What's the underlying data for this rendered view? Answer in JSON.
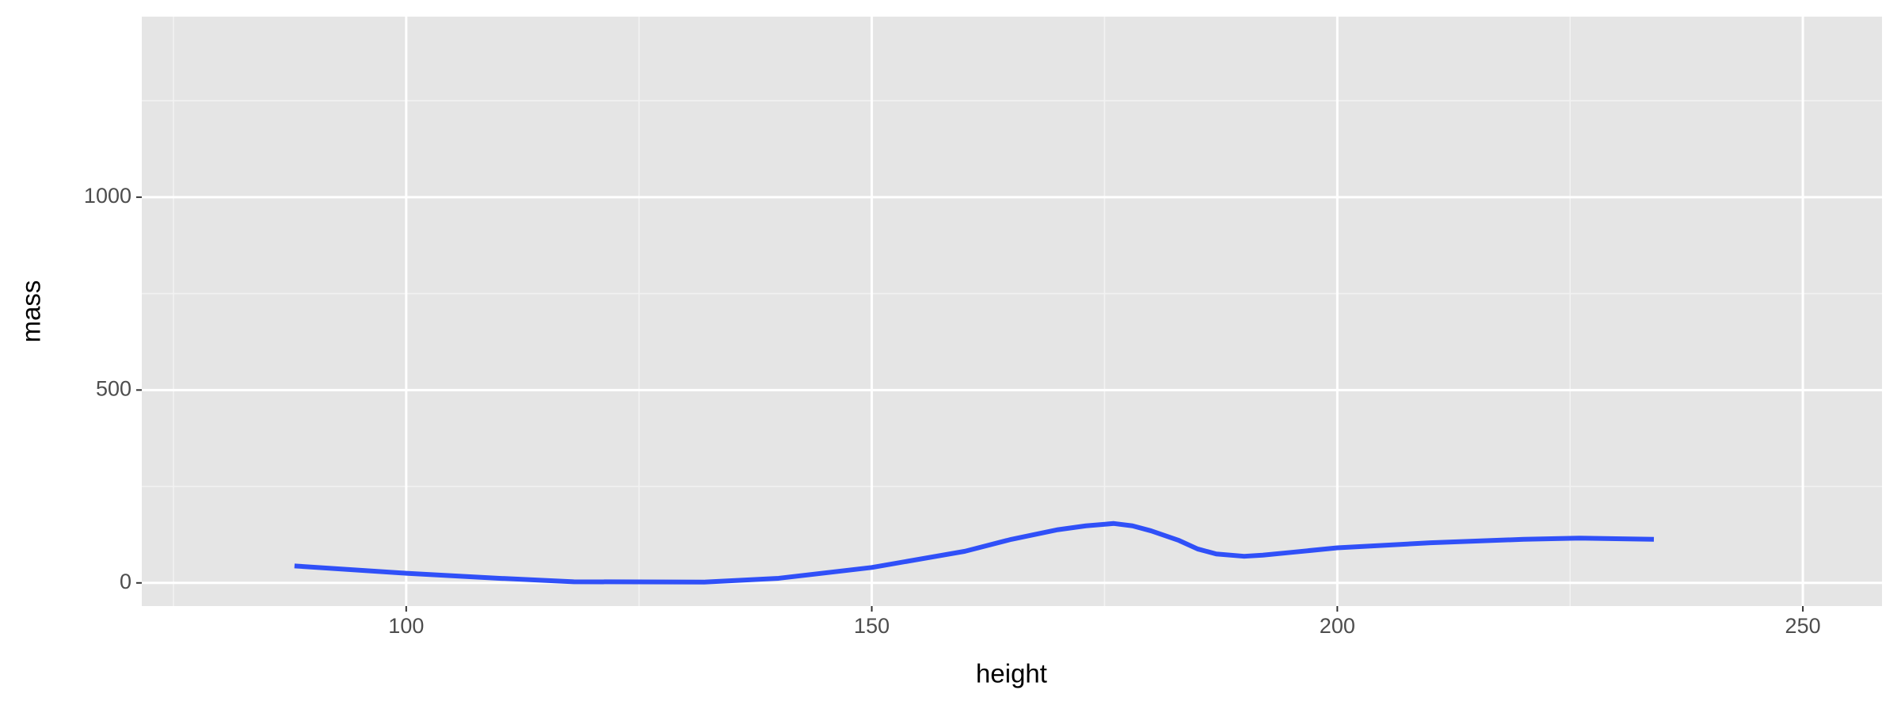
{
  "chart_data": {
    "type": "line",
    "x_label": "height",
    "y_label": "mass",
    "series": [
      {
        "color": "#3050f8",
        "x": [
          88,
          100,
          110,
          118,
          132,
          140,
          150,
          160,
          165,
          170,
          173,
          176,
          178,
          180,
          183,
          185,
          187,
          190,
          192,
          195,
          200,
          210,
          220,
          226,
          234
        ],
        "values": [
          44,
          25,
          12,
          3,
          2,
          12,
          40,
          82,
          113,
          138,
          148,
          154,
          148,
          135,
          110,
          88,
          75,
          69,
          72,
          79,
          91,
          104,
          113,
          116,
          113
        ]
      }
    ],
    "xlim": [
      71.6,
      258.5
    ],
    "xticks": [
      100,
      150,
      200,
      250
    ],
    "x_minor_grid": [
      75,
      125,
      175,
      225
    ],
    "ylim": [
      -60,
      1468
    ],
    "yticks": [
      0,
      500,
      1000
    ],
    "y_minor_grid": [
      250,
      750,
      1250
    ],
    "grid": true
  }
}
